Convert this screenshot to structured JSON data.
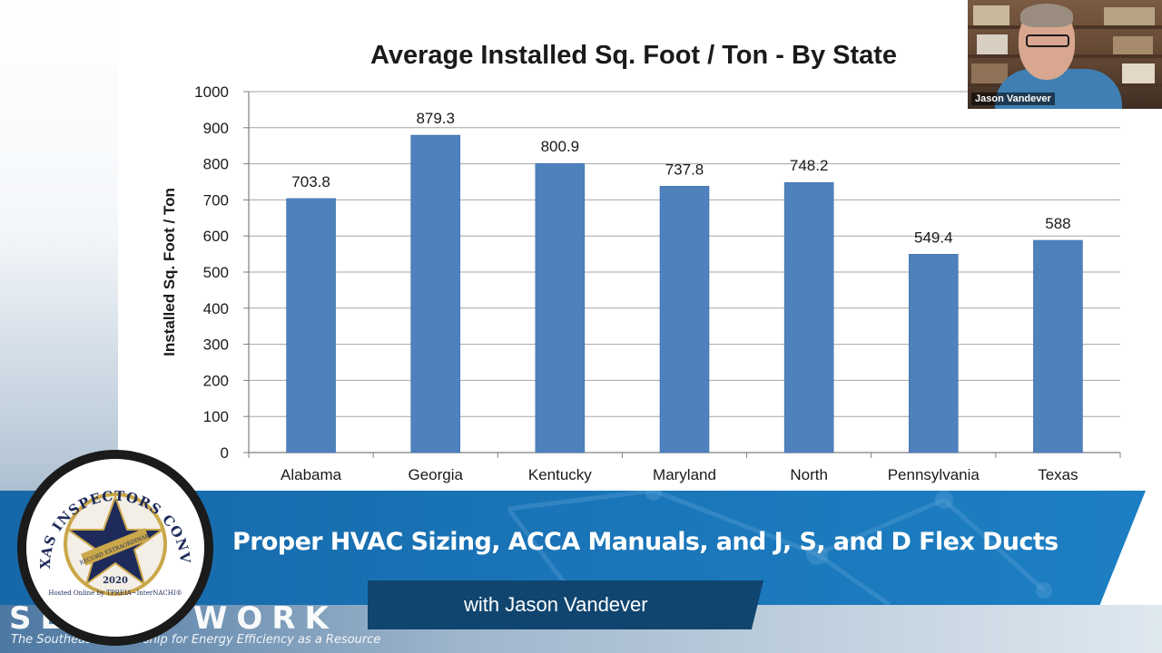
{
  "chart_data": {
    "type": "bar",
    "title": "Average Installed Sq. Foot / Ton - By State",
    "ylabel": "Installed Sq. Foot / Ton",
    "xlabel": "",
    "categories": [
      "Alabama",
      "Georgia",
      "Kentucky",
      "Maryland",
      "North",
      "Pennsylvania",
      "Texas"
    ],
    "values": [
      703.8,
      879.3,
      800.9,
      737.8,
      748.2,
      549.4,
      588
    ],
    "data_labels": [
      "703.8",
      "879.3",
      "800.9",
      "737.8",
      "748.2",
      "549.4",
      "588"
    ],
    "ylim": [
      0,
      1000
    ],
    "yticks": [
      "0",
      "100",
      "200",
      "300",
      "400",
      "500",
      "600",
      "700",
      "800",
      "900",
      "1000"
    ],
    "grid": true,
    "bar_color": "#4F81BD"
  },
  "webcam": {
    "name": "Jason Vandever"
  },
  "lower_third": {
    "title": "Proper HVAC Sizing, ACCA Manuals, and J, S, and D Flex Ducts",
    "subtitle": "with Jason Vandever",
    "accent_color": "#1a76b9"
  },
  "badge": {
    "arc_text": "THE TEXAS INSPECTORS CONVENTION",
    "ribbon_text": "RECORD EXTRAORDINARY",
    "year": "2020",
    "hosted_text": "Hosted Online by TPREIA~InterNACHI®"
  },
  "background_logo": {
    "wordmark": "SEEAM WORK",
    "tagline": "The Southeast Partnership for Energy Efficiency as a Resource"
  }
}
